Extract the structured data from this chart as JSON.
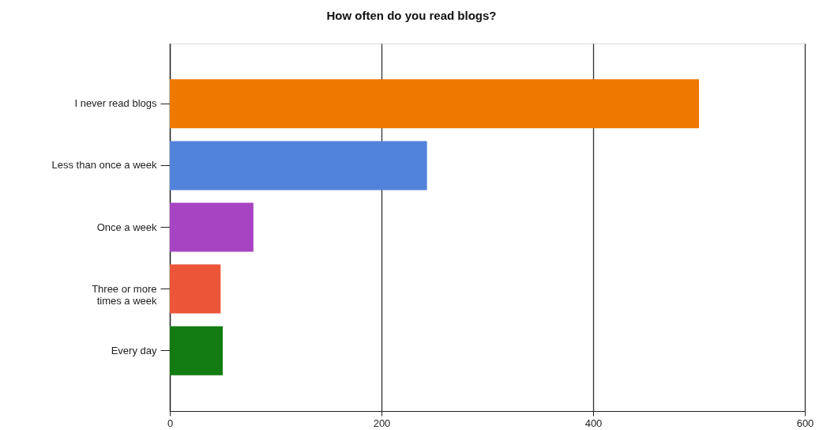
{
  "chart_data": {
    "type": "bar",
    "orientation": "horizontal",
    "title": "How often do you read blogs?",
    "categories": [
      "I never read blogs",
      "Less than once a week",
      "Once a week",
      "Three or more times a week",
      "Every day"
    ],
    "values": [
      500,
      243,
      79,
      48,
      50
    ],
    "colors": [
      "#ee7800",
      "#5283db",
      "#a744c2",
      "#ec5538",
      "#127c12"
    ],
    "xlim": [
      0,
      600
    ],
    "xticks": [
      0,
      200,
      400,
      600
    ],
    "grid": "x"
  }
}
